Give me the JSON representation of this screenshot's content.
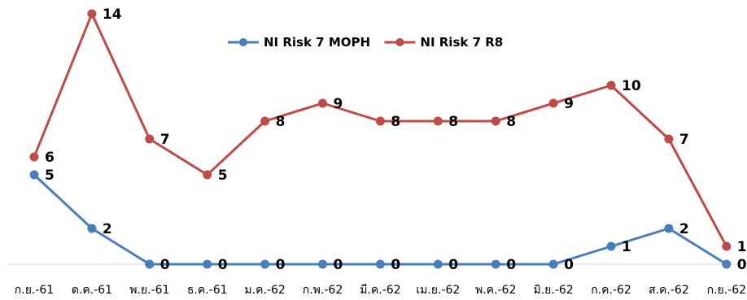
{
  "chart_data": {
    "type": "line",
    "title": "",
    "xlabel": "",
    "ylabel": "",
    "categories": [
      "ก.ย.-61",
      "ต.ค.-61",
      "พ.ย.-61",
      "ธ.ค.-61",
      "ม.ค.-62",
      "ก.พ.-62",
      "มี.ค.-62",
      "เม.ย.-62",
      "พ.ค.-62",
      "มิ.ย.-62",
      "ก.ค.-62",
      "ส.ค.-62",
      "ก.ย.-62"
    ],
    "series": [
      {
        "name": "NI Risk 7 MOPH",
        "color": "#4a7ebb",
        "values": [
          5,
          2,
          0,
          0,
          0,
          0,
          0,
          0,
          0,
          0,
          1,
          2,
          0
        ]
      },
      {
        "name": "NI Risk 7 R8",
        "color": "#be4b48",
        "values": [
          6,
          14,
          7,
          5,
          8,
          9,
          8,
          8,
          8,
          9,
          10,
          7,
          1
        ]
      }
    ],
    "ylim": [
      0,
      14
    ],
    "grid": false,
    "legend_position": "top-center",
    "data_labels": true
  }
}
